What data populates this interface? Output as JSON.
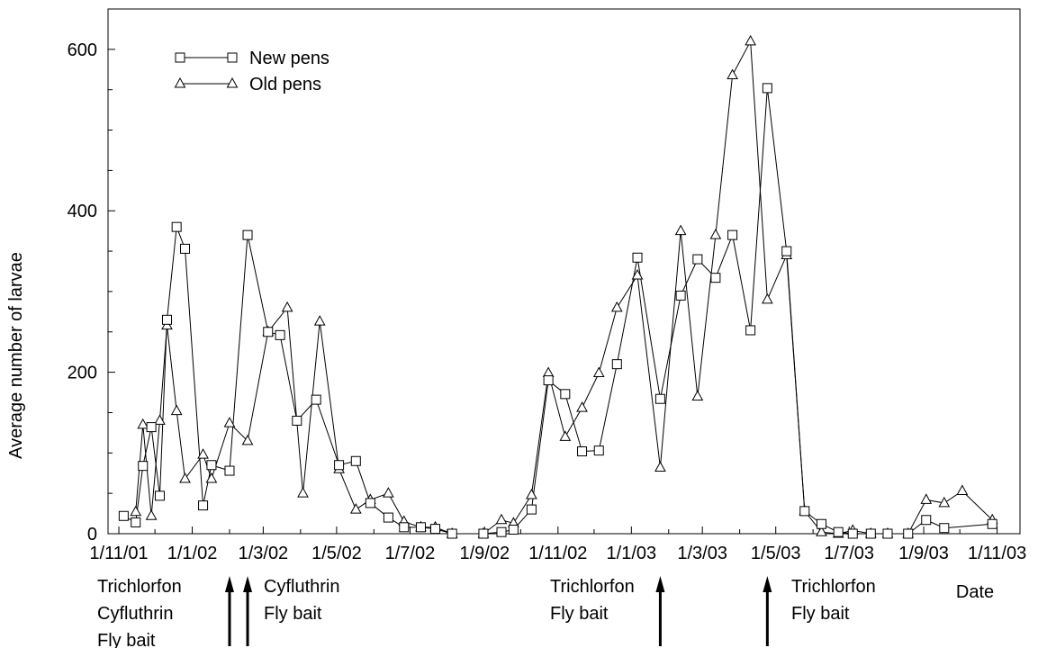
{
  "chart_data": {
    "type": "line",
    "title": "",
    "xlabel": "Date",
    "ylabel": "Average number of larvae",
    "ylim": [
      0,
      650
    ],
    "yticks": [
      0,
      200,
      400,
      600
    ],
    "x_tick_labels": [
      "1/11/01",
      "1/1/02",
      "1/3/02",
      "1/5/02",
      "1/7/02",
      "1/9/02",
      "1/11/02",
      "1/1/03",
      "1/3/03",
      "1/5/03",
      "1/7/03",
      "1/9/03",
      "1/11/03"
    ],
    "grid": false,
    "legend_position": "top-left",
    "series": [
      {
        "name": "New pens",
        "marker": "square",
        "points": [
          [
            "2001-11-05",
            22
          ],
          [
            "2001-11-15",
            14
          ],
          [
            "2001-11-21",
            84
          ],
          [
            "2001-11-28",
            132
          ],
          [
            "2001-12-05",
            47
          ],
          [
            "2001-12-11",
            265
          ],
          [
            "2001-12-19",
            380
          ],
          [
            "2001-12-26",
            353
          ],
          [
            "2002-01-10",
            35
          ],
          [
            "2002-01-17",
            85
          ],
          [
            "2002-02-01",
            78
          ],
          [
            "2002-02-16",
            370
          ],
          [
            "2002-03-05",
            250
          ],
          [
            "2002-03-15",
            246
          ],
          [
            "2002-03-29",
            140
          ],
          [
            "2002-04-14",
            166
          ],
          [
            "2002-05-03",
            85
          ],
          [
            "2002-05-17",
            90
          ],
          [
            "2002-05-29",
            38
          ],
          [
            "2002-06-13",
            20
          ],
          [
            "2002-06-26",
            8
          ],
          [
            "2002-07-10",
            8
          ],
          [
            "2002-07-22",
            6
          ],
          [
            "2002-08-05",
            0
          ],
          [
            "2002-08-31",
            0
          ],
          [
            "2002-09-15",
            2
          ],
          [
            "2002-09-25",
            5
          ],
          [
            "2002-10-10",
            30
          ],
          [
            "2002-10-24",
            190
          ],
          [
            "2002-11-07",
            173
          ],
          [
            "2002-11-21",
            102
          ],
          [
            "2002-12-05",
            103
          ],
          [
            "2002-12-20",
            210
          ],
          [
            "2003-01-06",
            342
          ],
          [
            "2003-01-25",
            167
          ],
          [
            "2003-02-11",
            295
          ],
          [
            "2003-02-25",
            340
          ],
          [
            "2003-03-12",
            317
          ],
          [
            "2003-03-26",
            370
          ],
          [
            "2003-04-10",
            252
          ],
          [
            "2003-04-24",
            552
          ],
          [
            "2003-05-10",
            350
          ],
          [
            "2003-05-25",
            28
          ],
          [
            "2003-06-08",
            12
          ],
          [
            "2003-06-22",
            2
          ],
          [
            "2003-07-04",
            0
          ],
          [
            "2003-07-19",
            0
          ],
          [
            "2003-08-02",
            0
          ],
          [
            "2003-08-19",
            0
          ],
          [
            "2003-09-03",
            17
          ],
          [
            "2003-09-18",
            7
          ],
          [
            "2003-10-28",
            12
          ]
        ]
      },
      {
        "name": "Old pens",
        "marker": "triangle",
        "points": [
          [
            "2001-11-15",
            27
          ],
          [
            "2001-11-21",
            135
          ],
          [
            "2001-11-28",
            22
          ],
          [
            "2001-12-05",
            140
          ],
          [
            "2001-12-11",
            258
          ],
          [
            "2001-12-19",
            152
          ],
          [
            "2001-12-26",
            68
          ],
          [
            "2002-01-10",
            98
          ],
          [
            "2002-01-17",
            68
          ],
          [
            "2002-02-01",
            137
          ],
          [
            "2002-02-16",
            115
          ],
          [
            "2002-03-05",
            250
          ],
          [
            "2002-03-21",
            280
          ],
          [
            "2002-04-03",
            50
          ],
          [
            "2002-04-17",
            263
          ],
          [
            "2002-05-03",
            80
          ],
          [
            "2002-05-17",
            30
          ],
          [
            "2002-05-29",
            42
          ],
          [
            "2002-06-13",
            50
          ],
          [
            "2002-06-26",
            15
          ],
          [
            "2002-07-10",
            8
          ],
          [
            "2002-07-22",
            8
          ],
          [
            "2002-08-05",
            0
          ],
          [
            "2002-08-31",
            0
          ],
          [
            "2002-09-15",
            17
          ],
          [
            "2002-09-25",
            13
          ],
          [
            "2002-10-10",
            48
          ],
          [
            "2002-10-24",
            199
          ],
          [
            "2002-11-07",
            120
          ],
          [
            "2002-11-21",
            156
          ],
          [
            "2002-12-05",
            199
          ],
          [
            "2002-12-20",
            280
          ],
          [
            "2003-01-06",
            320
          ],
          [
            "2003-01-25",
            82
          ],
          [
            "2003-02-11",
            375
          ],
          [
            "2003-02-25",
            170
          ],
          [
            "2003-03-12",
            370
          ],
          [
            "2003-03-26",
            568
          ],
          [
            "2003-04-10",
            610
          ],
          [
            "2003-04-24",
            290
          ],
          [
            "2003-05-10",
            345
          ],
          [
            "2003-05-25",
            28
          ],
          [
            "2003-06-08",
            2
          ],
          [
            "2003-06-22",
            0
          ],
          [
            "2003-07-04",
            4
          ],
          [
            "2003-07-19",
            0
          ],
          [
            "2003-08-02",
            0
          ],
          [
            "2003-08-19",
            0
          ],
          [
            "2003-09-03",
            42
          ],
          [
            "2003-09-18",
            38
          ],
          [
            "2003-10-03",
            53
          ],
          [
            "2003-10-28",
            17
          ]
        ]
      }
    ],
    "treatments": [
      {
        "date": "2002-02-01",
        "labels": [
          "Trichlorfon",
          "Cyfluthrin",
          "Fly bait"
        ]
      },
      {
        "date": "2002-02-16",
        "labels": [
          "Cyfluthrin",
          "Fly bait"
        ]
      },
      {
        "date": "2003-01-25",
        "labels": [
          "Trichlorfon",
          "Fly bait"
        ]
      },
      {
        "date": "2003-04-24",
        "labels": [
          "Trichlorfon",
          "Fly bait"
        ]
      }
    ]
  }
}
